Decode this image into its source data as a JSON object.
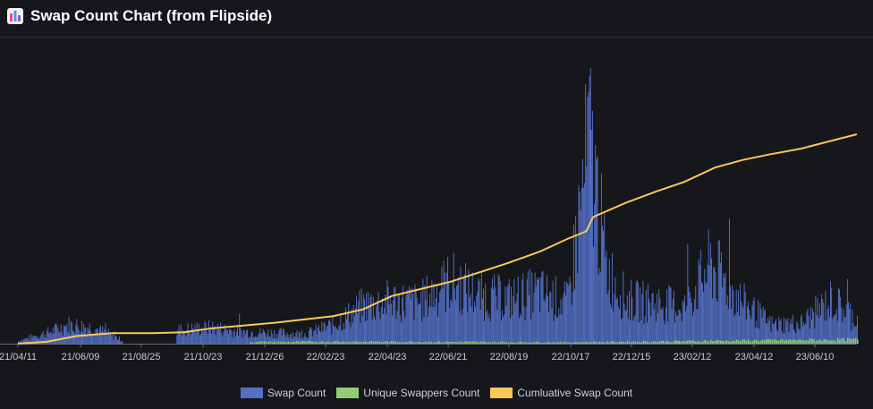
{
  "header": {
    "title": "Swap Count Chart (from Flipside)",
    "icon": "bar-chart-icon"
  },
  "colors": {
    "swap": "#5470c6",
    "unique": "#91cc75",
    "cumulative": "#fac858",
    "background": "#16171a"
  },
  "chart_data": {
    "type": "bar",
    "title": "",
    "x_ticks": [
      "21/04/11",
      "21/06/09",
      "21/08/25",
      "21/10/23",
      "21/12/26",
      "22/02/23",
      "22/04/23",
      "22/06/21",
      "22/08/19",
      "22/10/17",
      "22/12/15",
      "23/02/12",
      "23/04/12",
      "23/06/10"
    ],
    "x_range": [
      "2021-04-11",
      "2023-08-05"
    ],
    "grid": false,
    "legend_placement": "bottom",
    "series": [
      {
        "name": "Swap Count",
        "type": "bar",
        "description_points": [
          {
            "x": "2021-04-11",
            "y": 2
          },
          {
            "x": "2021-05-10",
            "y": 8
          },
          {
            "x": "2021-06-01",
            "y": 14
          },
          {
            "x": "2021-06-25",
            "y": 12
          },
          {
            "x": "2021-07-15",
            "y": 6
          },
          {
            "x": "2021-08-01",
            "y": 0
          },
          {
            "x": "2021-09-10",
            "y": 0
          },
          {
            "x": "2021-09-20",
            "y": 10
          },
          {
            "x": "2021-10-23",
            "y": 12
          },
          {
            "x": "2021-11-20",
            "y": 9
          },
          {
            "x": "2021-12-26",
            "y": 8
          },
          {
            "x": "2022-01-25",
            "y": 7
          },
          {
            "x": "2022-02-23",
            "y": 14
          },
          {
            "x": "2022-03-25",
            "y": 28
          },
          {
            "x": "2022-04-23",
            "y": 32
          },
          {
            "x": "2022-05-20",
            "y": 30
          },
          {
            "x": "2022-06-21",
            "y": 46
          },
          {
            "x": "2022-07-20",
            "y": 35
          },
          {
            "x": "2022-08-19",
            "y": 33
          },
          {
            "x": "2022-09-18",
            "y": 38
          },
          {
            "x": "2022-10-17",
            "y": 30
          },
          {
            "x": "2022-11-08",
            "y": 150
          },
          {
            "x": "2022-11-25",
            "y": 55
          },
          {
            "x": "2022-12-15",
            "y": 32
          },
          {
            "x": "2023-01-15",
            "y": 30
          },
          {
            "x": "2023-02-12",
            "y": 27
          },
          {
            "x": "2023-03-10",
            "y": 58
          },
          {
            "x": "2023-04-12",
            "y": 30
          },
          {
            "x": "2023-05-10",
            "y": 14
          },
          {
            "x": "2023-06-10",
            "y": 15
          },
          {
            "x": "2023-07-10",
            "y": 32
          },
          {
            "x": "2023-08-05",
            "y": 18
          }
        ]
      },
      {
        "name": "Unique Swappers Count",
        "type": "bar",
        "description_points": [
          {
            "x": "2021-04-11",
            "y": 0.3
          },
          {
            "x": "2022-02-23",
            "y": 1.5
          },
          {
            "x": "2022-10-17",
            "y": 1
          },
          {
            "x": "2023-08-05",
            "y": 3
          }
        ]
      },
      {
        "name": "Cumluative Swap Count",
        "type": "line",
        "points": [
          {
            "x": "2021-04-11",
            "y": 0
          },
          {
            "x": "2021-05-10",
            "y": 2
          },
          {
            "x": "2021-06-09",
            "y": 8
          },
          {
            "x": "2021-07-15",
            "y": 11
          },
          {
            "x": "2021-08-25",
            "y": 11
          },
          {
            "x": "2021-09-25",
            "y": 12
          },
          {
            "x": "2021-10-23",
            "y": 16
          },
          {
            "x": "2021-12-26",
            "y": 22
          },
          {
            "x": "2022-02-23",
            "y": 29
          },
          {
            "x": "2022-03-25",
            "y": 36
          },
          {
            "x": "2022-04-23",
            "y": 50
          },
          {
            "x": "2022-06-21",
            "y": 65
          },
          {
            "x": "2022-08-19",
            "y": 85
          },
          {
            "x": "2022-09-20",
            "y": 97
          },
          {
            "x": "2022-10-17",
            "y": 110
          },
          {
            "x": "2022-11-05",
            "y": 118
          },
          {
            "x": "2022-11-12",
            "y": 133
          },
          {
            "x": "2022-12-15",
            "y": 148
          },
          {
            "x": "2023-01-15",
            "y": 160
          },
          {
            "x": "2023-02-12",
            "y": 170
          },
          {
            "x": "2023-03-15",
            "y": 185
          },
          {
            "x": "2023-04-12",
            "y": 193
          },
          {
            "x": "2023-05-10",
            "y": 199
          },
          {
            "x": "2023-06-10",
            "y": 205
          },
          {
            "x": "2023-07-10",
            "y": 213
          },
          {
            "x": "2023-08-05",
            "y": 220
          }
        ]
      }
    ]
  }
}
